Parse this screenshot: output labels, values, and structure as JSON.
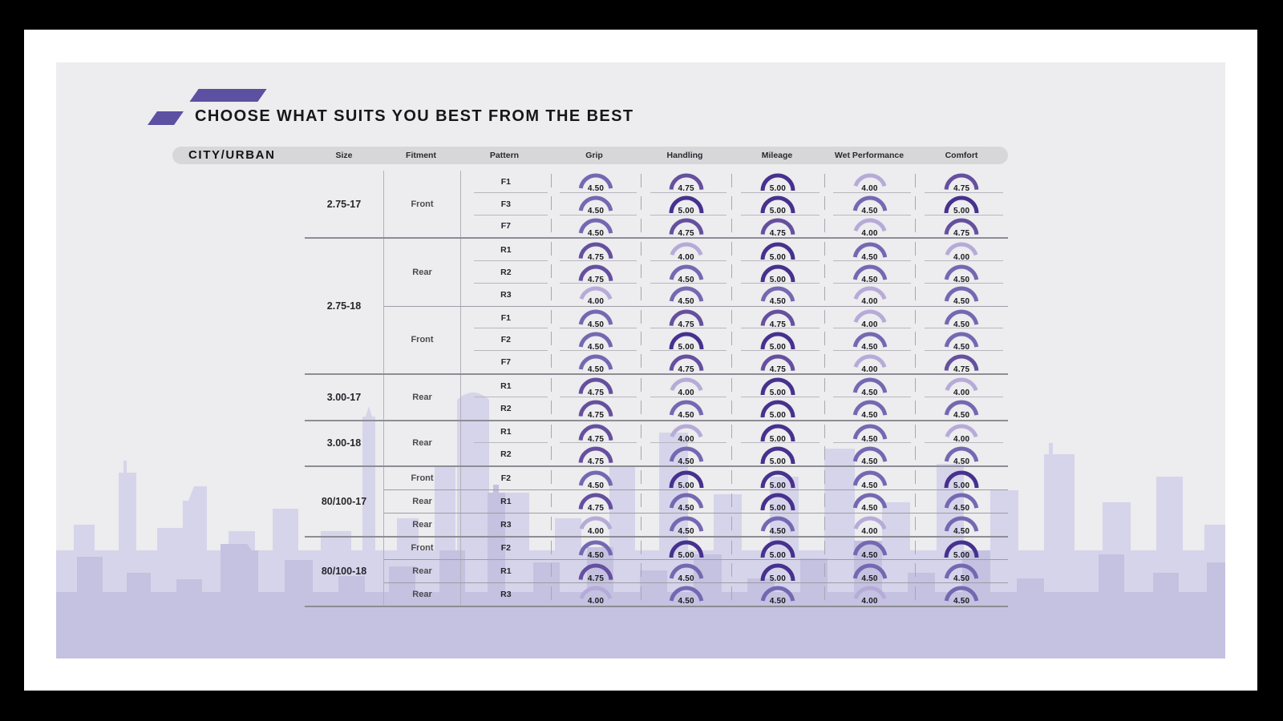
{
  "header": {
    "title": "CHOOSE WHAT SUITS YOU BEST FROM THE BEST",
    "category_label": "CITY/URBAN"
  },
  "gauges": {
    "scale_max": 5,
    "colors": {
      "5.00": "#46318e",
      "4.75": "#65509f",
      "4.50": "#7568b2",
      "4.00": "#b6abd8"
    }
  },
  "chart_data": {
    "type": "table",
    "title": "CHOOSE WHAT SUITS YOU BEST FROM THE BEST",
    "category": "CITY/URBAN",
    "columns": [
      "Size",
      "Fitment",
      "Pattern",
      "Grip",
      "Handling",
      "Mileage",
      "Wet Performance",
      "Comfort"
    ],
    "rating_scale": [
      0,
      5
    ],
    "rows": [
      {
        "size": "2.75-17",
        "fitment": "Front",
        "fg": 1,
        "pattern": "F1",
        "grip": "4.50",
        "handling": "4.75",
        "mileage": "5.00",
        "wet": "4.00",
        "comfort": "4.75"
      },
      {
        "size": "2.75-17",
        "fitment": "Front",
        "fg": 1,
        "pattern": "F3",
        "grip": "4.50",
        "handling": "5.00",
        "mileage": "5.00",
        "wet": "4.50",
        "comfort": "5.00"
      },
      {
        "size": "2.75-17",
        "fitment": "Front",
        "fg": 1,
        "pattern": "F7",
        "grip": "4.50",
        "handling": "4.75",
        "mileage": "4.75",
        "wet": "4.00",
        "comfort": "4.75"
      },
      {
        "size": "2.75-18",
        "fitment": "Rear",
        "fg": 2,
        "pattern": "R1",
        "grip": "4.75",
        "handling": "4.00",
        "mileage": "5.00",
        "wet": "4.50",
        "comfort": "4.00"
      },
      {
        "size": "2.75-18",
        "fitment": "Rear",
        "fg": 2,
        "pattern": "R2",
        "grip": "4.75",
        "handling": "4.50",
        "mileage": "5.00",
        "wet": "4.50",
        "comfort": "4.50"
      },
      {
        "size": "2.75-18",
        "fitment": "Rear",
        "fg": 2,
        "pattern": "R3",
        "grip": "4.00",
        "handling": "4.50",
        "mileage": "4.50",
        "wet": "4.00",
        "comfort": "4.50"
      },
      {
        "size": "2.75-18",
        "fitment": "Front",
        "fg": 3,
        "pattern": "F1",
        "grip": "4.50",
        "handling": "4.75",
        "mileage": "4.75",
        "wet": "4.00",
        "comfort": "4.50"
      },
      {
        "size": "2.75-18",
        "fitment": "Front",
        "fg": 3,
        "pattern": "F2",
        "grip": "4.50",
        "handling": "5.00",
        "mileage": "5.00",
        "wet": "4.50",
        "comfort": "4.50"
      },
      {
        "size": "2.75-18",
        "fitment": "Front",
        "fg": 3,
        "pattern": "F7",
        "grip": "4.50",
        "handling": "4.75",
        "mileage": "4.75",
        "wet": "4.00",
        "comfort": "4.75"
      },
      {
        "size": "3.00-17",
        "fitment": "Rear",
        "fg": 4,
        "pattern": "R1",
        "grip": "4.75",
        "handling": "4.00",
        "mileage": "5.00",
        "wet": "4.50",
        "comfort": "4.00"
      },
      {
        "size": "3.00-17",
        "fitment": "Rear",
        "fg": 4,
        "pattern": "R2",
        "grip": "4.75",
        "handling": "4.50",
        "mileage": "5.00",
        "wet": "4.50",
        "comfort": "4.50"
      },
      {
        "size": "3.00-18",
        "fitment": "Rear",
        "fg": 5,
        "pattern": "R1",
        "grip": "4.75",
        "handling": "4.00",
        "mileage": "5.00",
        "wet": "4.50",
        "comfort": "4.00"
      },
      {
        "size": "3.00-18",
        "fitment": "Rear",
        "fg": 5,
        "pattern": "R2",
        "grip": "4.75",
        "handling": "4.50",
        "mileage": "5.00",
        "wet": "4.50",
        "comfort": "4.50"
      },
      {
        "size": "80/100-17",
        "fitment": "Front",
        "fg": 6,
        "pattern": "F2",
        "grip": "4.50",
        "handling": "5.00",
        "mileage": "5.00",
        "wet": "4.50",
        "comfort": "5.00"
      },
      {
        "size": "80/100-17",
        "fitment": "Rear",
        "fg": 7,
        "pattern": "R1",
        "grip": "4.75",
        "handling": "4.50",
        "mileage": "5.00",
        "wet": "4.50",
        "comfort": "4.50"
      },
      {
        "size": "80/100-17",
        "fitment": "Rear",
        "fg": 8,
        "pattern": "R3",
        "grip": "4.00",
        "handling": "4.50",
        "mileage": "4.50",
        "wet": "4.00",
        "comfort": "4.50"
      },
      {
        "size": "80/100-18",
        "fitment": "Front",
        "fg": 9,
        "pattern": "F2",
        "grip": "4.50",
        "handling": "5.00",
        "mileage": "5.00",
        "wet": "4.50",
        "comfort": "5.00"
      },
      {
        "size": "80/100-18",
        "fitment": "Rear",
        "fg": 10,
        "pattern": "R1",
        "grip": "4.75",
        "handling": "4.50",
        "mileage": "5.00",
        "wet": "4.50",
        "comfort": "4.50"
      },
      {
        "size": "80/100-18",
        "fitment": "Rear",
        "fg": 11,
        "pattern": "R3",
        "grip": "4.00",
        "handling": "4.50",
        "mileage": "4.50",
        "wet": "4.00",
        "comfort": "4.50"
      }
    ]
  }
}
